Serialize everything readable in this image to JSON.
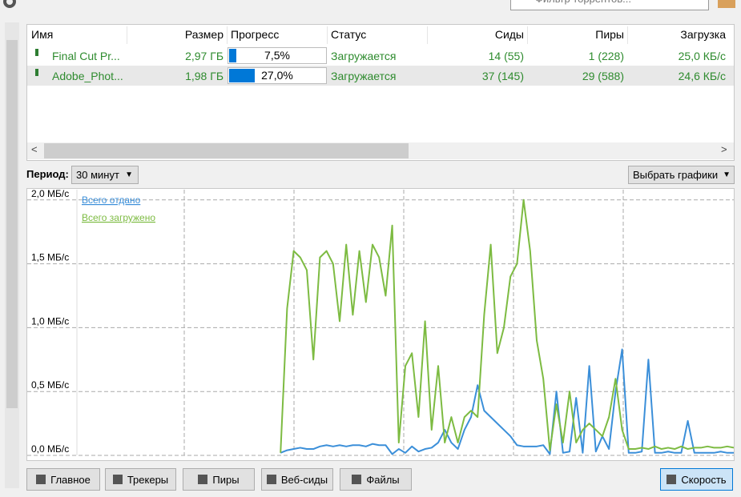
{
  "toolbar": {
    "filter_placeholder": "Фильтр торрентов..."
  },
  "table": {
    "columns": [
      "Имя",
      "Размер",
      "Прогресс",
      "Статус",
      "Сиды",
      "Пиры",
      "Загрузка"
    ],
    "rows": [
      [
        "Final Cut Pr...",
        "2,97 ГБ",
        {
          "value": 7.5,
          "label": "7,5%"
        },
        "Загружается",
        "14 (55)",
        "1 (228)",
        "25,0 КБ/с"
      ],
      [
        "Adobe_Phot...",
        "1,98 ГБ",
        {
          "value": 27.0,
          "label": "27,0%"
        },
        "Загружается",
        "37 (145)",
        "29 (588)",
        "24,6 КБ/с"
      ]
    ]
  },
  "period": {
    "label": "Период:",
    "value": "30 минут"
  },
  "select_graphs": "Выбрать графики",
  "chart_data": {
    "type": "line",
    "ylim": [
      0,
      2.08
    ],
    "yticks": [
      {
        "value": 0,
        "label": "0,0 МБ/с"
      },
      {
        "value": 0.5,
        "label": "0,5 МБ/с"
      },
      {
        "value": 1.0,
        "label": "1,0 МБ/с"
      },
      {
        "value": 1.5,
        "label": "1,5 МБ/с"
      },
      {
        "value": 2.0,
        "label": "2,0 МБ/с"
      }
    ],
    "grid": true,
    "legend": "top-left",
    "series": [
      {
        "name": "Всего отдано",
        "color": "#3b8fd9",
        "values": [
          null,
          null,
          null,
          null,
          null,
          null,
          null,
          null,
          null,
          null,
          null,
          null,
          null,
          null,
          null,
          null,
          null,
          null,
          null,
          null,
          null,
          null,
          null,
          null,
          null,
          null,
          null,
          null,
          null,
          null,
          null,
          0.02,
          0.04,
          0.05,
          0.06,
          0.05,
          0.05,
          0.07,
          0.08,
          0.07,
          0.08,
          0.07,
          0.08,
          0.08,
          0.07,
          0.09,
          0.08,
          0.08,
          0.01,
          0.05,
          0.02,
          0.07,
          0.03,
          0.05,
          0.06,
          0.1,
          0.2,
          0.1,
          0.05,
          0.2,
          0.3,
          0.55,
          0.35,
          0.3,
          0.25,
          0.2,
          0.15,
          0.08,
          0.07,
          0.07,
          0.07,
          0.08,
          0.01,
          0.5,
          0.02,
          0.03,
          0.45,
          0.02,
          0.7,
          0.03,
          0.15,
          0.05,
          0.5,
          0.83,
          0.02,
          0.02,
          0.03,
          0.75,
          0.02,
          0.02,
          0.03,
          0.02,
          0.02,
          0.27,
          0.02,
          0.02,
          0.02,
          0.02,
          0.03,
          0.02,
          0.02
        ]
      },
      {
        "name": "Всего загружено",
        "color": "#7dbb42",
        "values": [
          null,
          null,
          null,
          null,
          null,
          null,
          null,
          null,
          null,
          null,
          null,
          null,
          null,
          null,
          null,
          null,
          null,
          null,
          null,
          null,
          null,
          null,
          null,
          null,
          null,
          null,
          null,
          null,
          null,
          null,
          null,
          0.02,
          1.15,
          1.6,
          1.55,
          1.45,
          0.75,
          1.55,
          1.6,
          1.5,
          1.05,
          1.65,
          1.1,
          1.6,
          1.2,
          1.65,
          1.55,
          1.25,
          1.8,
          0.1,
          0.7,
          0.8,
          0.3,
          1.05,
          0.2,
          0.7,
          0.1,
          0.3,
          0.1,
          0.3,
          0.35,
          0.3,
          1.1,
          1.65,
          0.8,
          1.0,
          1.4,
          1.5,
          2.0,
          1.6,
          0.9,
          0.6,
          0.04,
          0.4,
          0.1,
          0.5,
          0.1,
          0.2,
          0.25,
          0.2,
          0.15,
          0.3,
          0.6,
          0.2,
          0.05,
          0.05,
          0.06,
          0.05,
          0.07,
          0.05,
          0.06,
          0.05,
          0.07,
          0.05,
          0.06,
          0.06,
          0.07,
          0.06,
          0.06,
          0.07,
          0.06
        ]
      }
    ]
  },
  "tabs": [
    "Главное",
    "Трекеры",
    "Пиры",
    "Веб-сиды",
    "Файлы"
  ],
  "speed_tab": "Скорость"
}
